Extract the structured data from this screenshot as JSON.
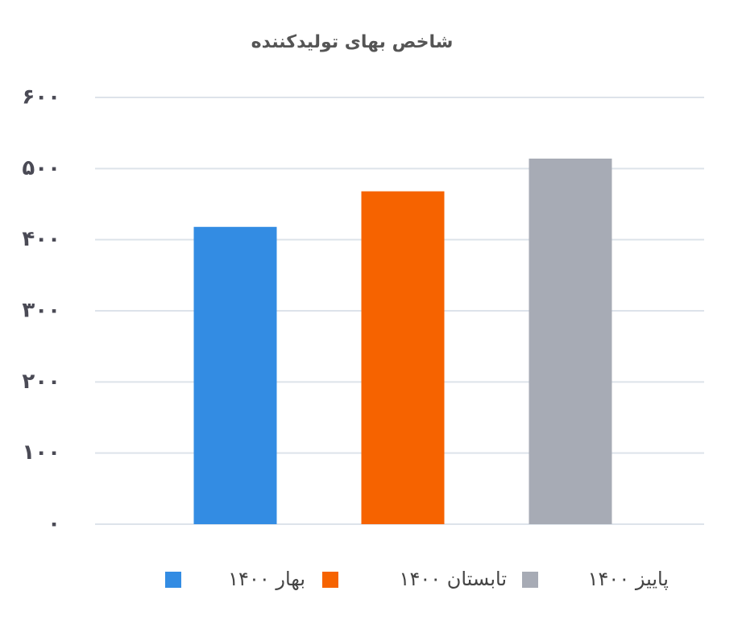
{
  "chart_data": {
    "type": "bar",
    "title": "شاخص بهای تولیدکننده",
    "categories": [
      null
    ],
    "series": [
      {
        "name": "بهار ۱۴۰۰",
        "color": "#338ce3",
        "values": [
          418
        ]
      },
      {
        "name": "تابستان ۱۴۰۰",
        "color": "#f66300",
        "values": [
          468
        ]
      },
      {
        "name": "پاییز ۱۴۰۰",
        "color": "#a7abb5",
        "values": [
          514
        ]
      }
    ],
    "ylim": [
      0,
      600
    ],
    "yticks": [
      {
        "value": 0,
        "label": "۰"
      },
      {
        "value": 100,
        "label": "۱۰۰"
      },
      {
        "value": 200,
        "label": "۲۰۰"
      },
      {
        "value": 300,
        "label": "۳۰۰"
      },
      {
        "value": 400,
        "label": "۴۰۰"
      },
      {
        "value": 500,
        "label": "۵۰۰"
      },
      {
        "value": 600,
        "label": "۶۰۰"
      }
    ],
    "grid": true,
    "legend": "bottom"
  }
}
